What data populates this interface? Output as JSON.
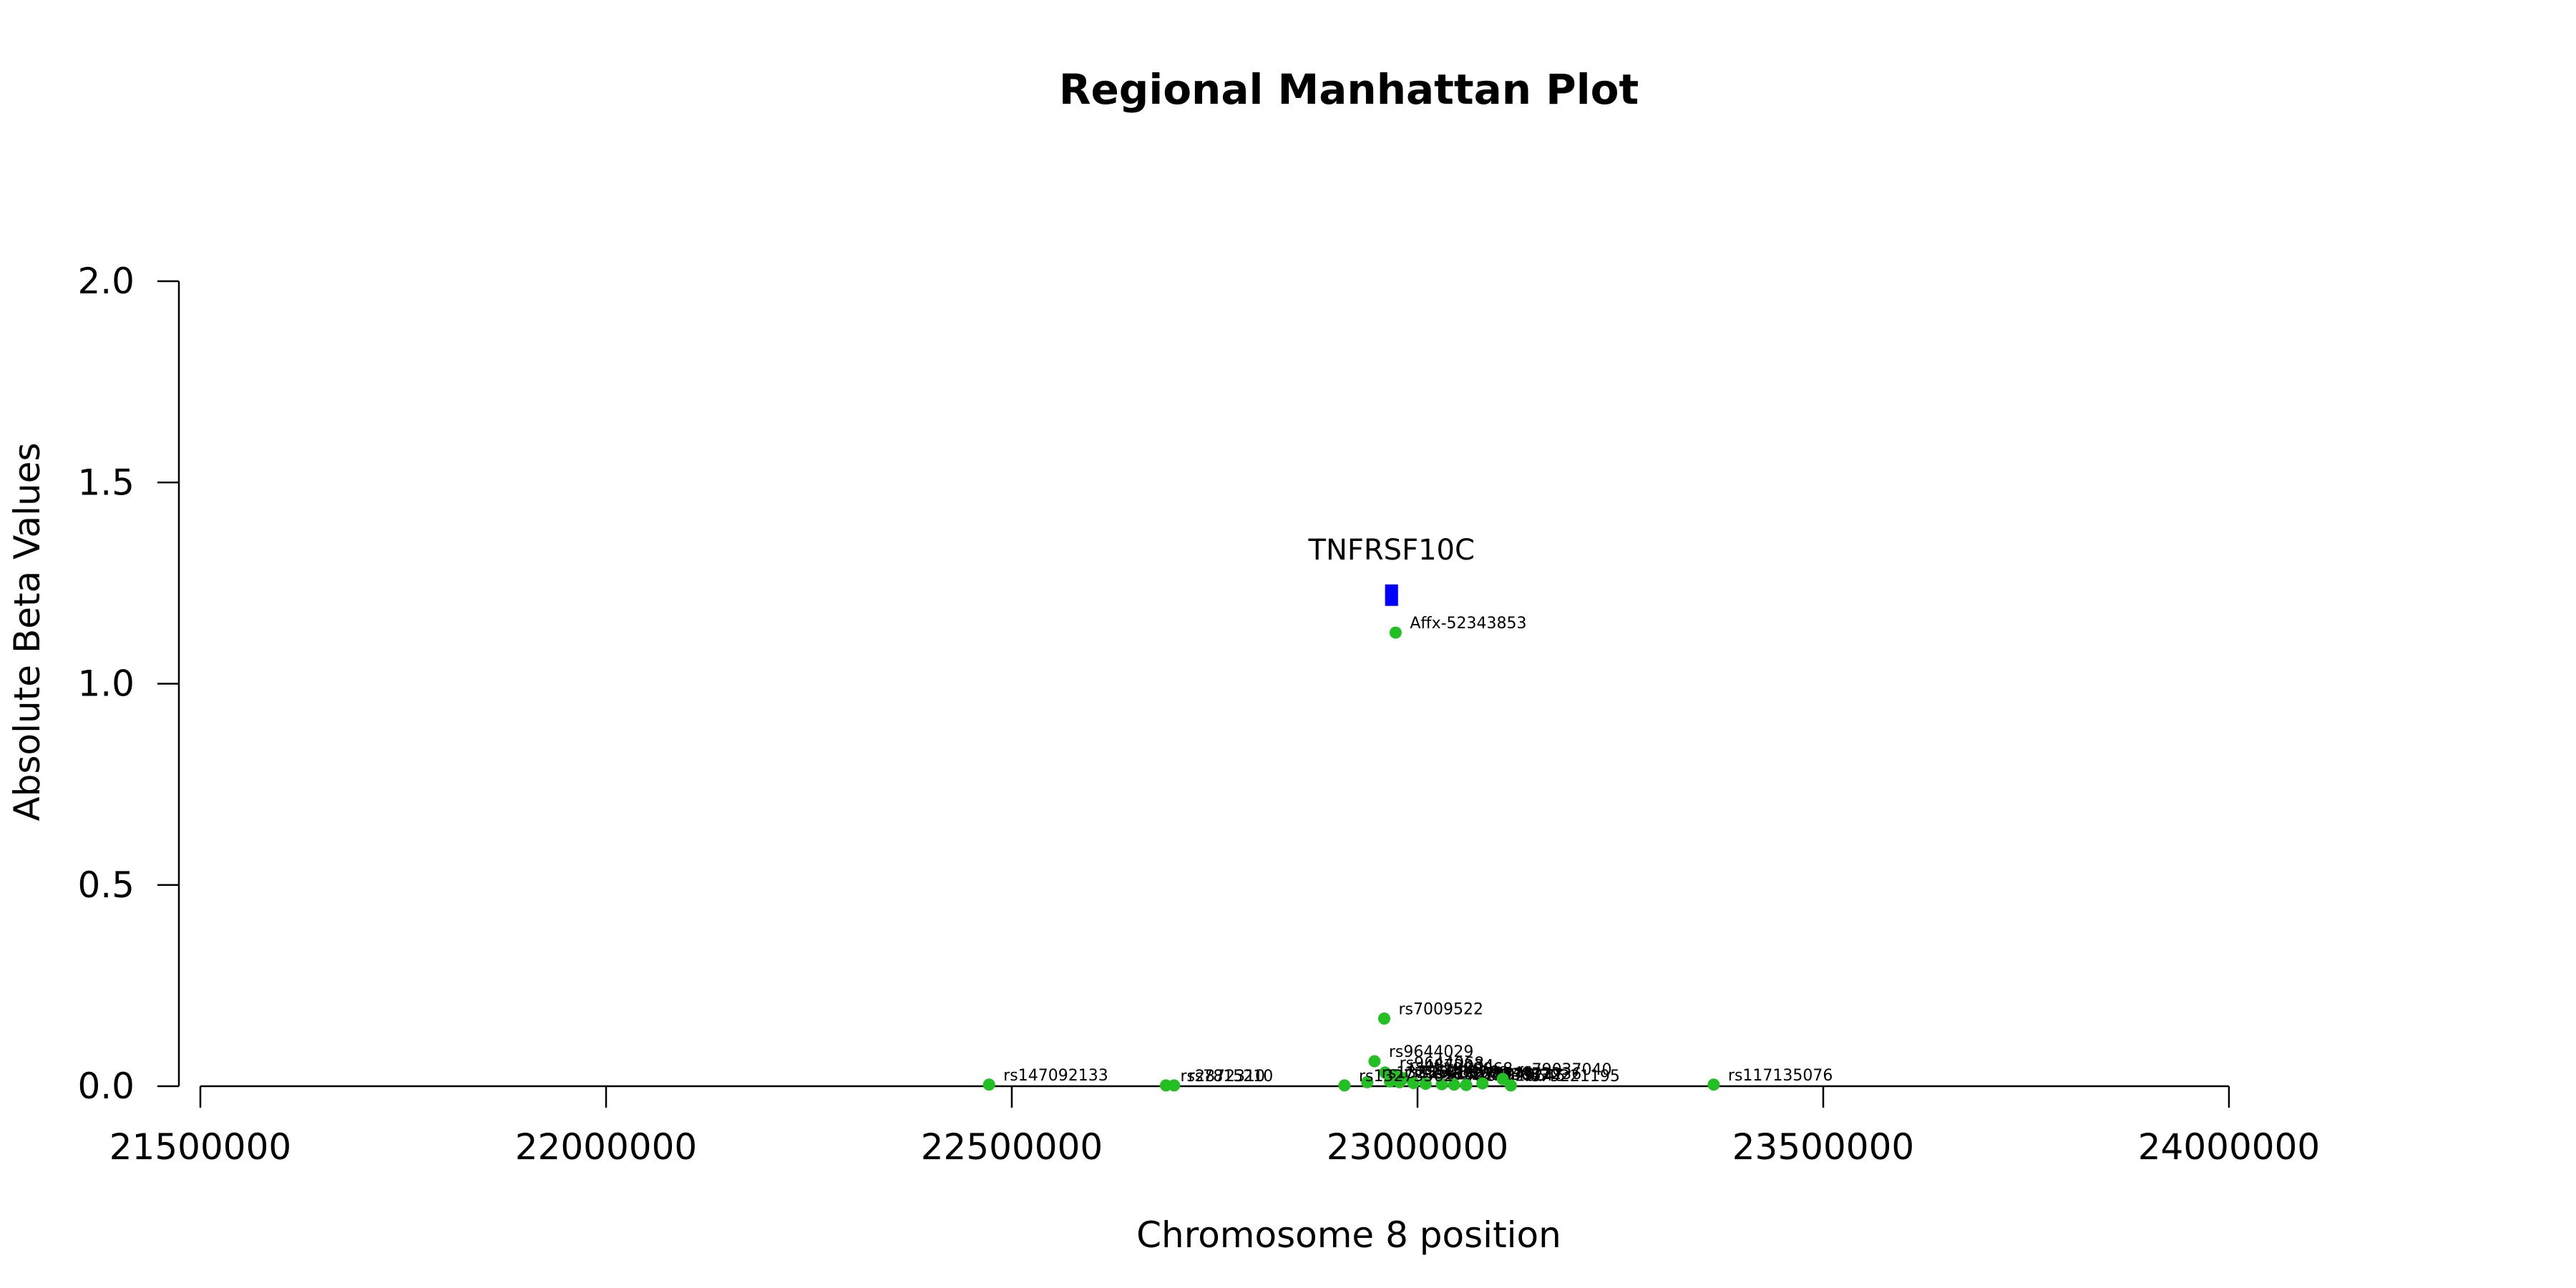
{
  "chart_data": {
    "type": "scatter",
    "title": "Regional Manhattan Plot",
    "xlabel": "Chromosome 8 position",
    "ylabel": "Absolute Beta Values",
    "xlim": [
      21500000,
      24000000
    ],
    "ylim": [
      0,
      2.0
    ],
    "x_ticks": [
      21500000,
      22000000,
      22500000,
      23000000,
      23500000,
      24000000
    ],
    "x_tick_labels": [
      "21500000",
      "22000000",
      "22500000",
      "23000000",
      "23500000",
      "24000000"
    ],
    "y_ticks": [
      0,
      0.5,
      1.0,
      1.5,
      2.0
    ],
    "y_tick_labels": [
      "0.0",
      "0.5",
      "1.0",
      "1.5",
      "2.0"
    ],
    "grid": false,
    "point_color": "#22c022",
    "gene_color": "#0000ff",
    "genes": [
      {
        "name": "TNFRSF10C",
        "start": 22960000,
        "end": 22976000,
        "y": 1.22
      }
    ],
    "points": [
      {
        "label": "Affx-52343853",
        "x": 22973000,
        "y": 1.127
      },
      {
        "label": "rs7009522",
        "x": 22959000,
        "y": 0.168
      },
      {
        "label": "rs9644029",
        "x": 22947000,
        "y": 0.062
      },
      {
        "label": "rs9644068",
        "x": 22960000,
        "y": 0.034
      },
      {
        "label": "rs4872234",
        "x": 22972000,
        "y": 0.028
      },
      {
        "label": "rs11989068",
        "x": 22983000,
        "y": 0.02
      },
      {
        "label": "rs12548006",
        "x": 22966000,
        "y": 0.012
      },
      {
        "label": "rs10203779",
        "x": 22978000,
        "y": 0.01
      },
      {
        "label": "rs4872285",
        "x": 22995000,
        "y": 0.008
      },
      {
        "label": "rs13270049",
        "x": 23010000,
        "y": 0.006
      },
      {
        "label": "rs16893087",
        "x": 23030000,
        "y": 0.005
      },
      {
        "label": "rs11779247",
        "x": 23045000,
        "y": 0.004
      },
      {
        "label": "rs7820645",
        "x": 23060000,
        "y": 0.003
      },
      {
        "label": "rs4872236",
        "x": 23080000,
        "y": 0.007
      },
      {
        "label": "rs79037040",
        "x": 23105000,
        "y": 0.018
      },
      {
        "label": "rs79221195",
        "x": 23115000,
        "y": 0.002
      },
      {
        "label": "rs13255418",
        "x": 22938000,
        "y": 0.01
      },
      {
        "label": "rs13273562",
        "x": 22910000,
        "y": 0.002
      },
      {
        "label": "rs147092133",
        "x": 22472000,
        "y": 0.004
      },
      {
        "label": "rs2872310",
        "x": 22690000,
        "y": 0.002
      },
      {
        "label": "rs7815210",
        "x": 22700000,
        "y": 0.002
      },
      {
        "label": "rs117135076",
        "x": 23365000,
        "y": 0.004
      }
    ]
  }
}
